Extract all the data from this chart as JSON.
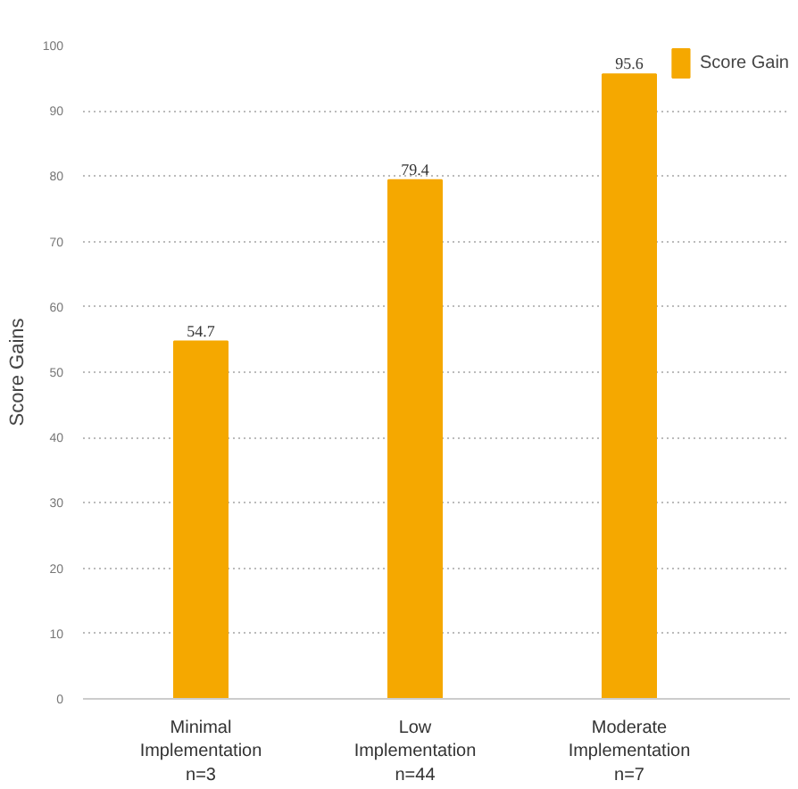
{
  "chart_data": {
    "type": "bar",
    "ylabel": "Score Gains",
    "categories": [
      "Minimal\nImplementation\nn=3",
      "Low\nImplementation\nn=44",
      "Moderate\nImplementation\nn=7"
    ],
    "series": [
      {
        "name": "Score Gain",
        "color": "#f5a800",
        "values": [
          54.7,
          79.4,
          95.6
        ]
      }
    ],
    "ylim": [
      0,
      100
    ],
    "yticks": [
      0,
      10,
      20,
      30,
      40,
      50,
      60,
      70,
      80,
      90,
      100
    ],
    "grid": "y",
    "legend": "top right",
    "data_labels": true
  }
}
